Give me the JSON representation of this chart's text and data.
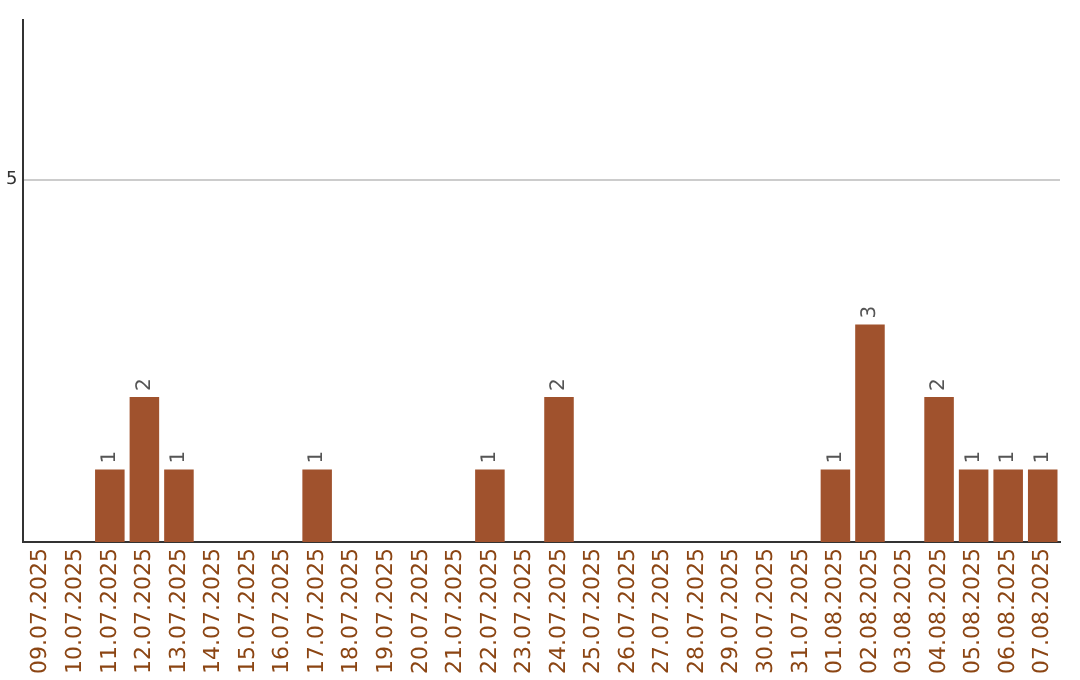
{
  "chart_data": {
    "type": "bar",
    "categories": [
      "09.07.2025",
      "10.07.2025",
      "11.07.2025",
      "12.07.2025",
      "13.07.2025",
      "14.07.2025",
      "15.07.2025",
      "16.07.2025",
      "17.07.2025",
      "18.07.2025",
      "19.07.2025",
      "20.07.2025",
      "21.07.2025",
      "22.07.2025",
      "23.07.2025",
      "24.07.2025",
      "25.07.2025",
      "26.07.2025",
      "27.07.2025",
      "28.07.2025",
      "29.07.2025",
      "30.07.2025",
      "31.07.2025",
      "01.08.2025",
      "02.08.2025",
      "03.08.2025",
      "04.08.2025",
      "05.08.2025",
      "06.08.2025",
      "07.08.2025"
    ],
    "values": [
      0,
      0,
      1,
      2,
      1,
      0,
      0,
      0,
      1,
      0,
      0,
      0,
      0,
      1,
      0,
      2,
      0,
      0,
      0,
      0,
      0,
      0,
      0,
      1,
      3,
      0,
      2,
      1,
      1,
      1
    ],
    "value_labels": [
      null,
      null,
      "1",
      "2",
      "1",
      null,
      null,
      null,
      "1",
      null,
      null,
      null,
      null,
      "1",
      null,
      "2",
      null,
      null,
      null,
      null,
      null,
      null,
      null,
      "1",
      "3",
      null,
      "2",
      "1",
      "1",
      "1"
    ],
    "color": "#a0522d",
    "ylim": [
      0,
      7.2
    ],
    "yticks": [
      5
    ],
    "grid": "y",
    "legend": false
  }
}
